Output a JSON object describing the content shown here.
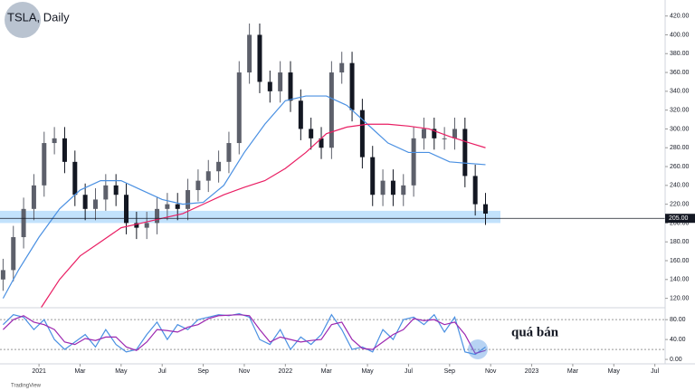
{
  "title": "TSLA, Daily",
  "footer": "TradingView",
  "chart_data": [
    {
      "type": "candlestick",
      "candles": {
        "x": [
          -1.75,
          -1.25,
          -0.75,
          -0.25,
          0.25,
          0.75,
          1.25,
          1.75,
          2.25,
          2.75,
          3.25,
          3.75,
          4.25,
          4.75,
          5.25,
          5.75,
          6.25,
          6.75,
          7.25,
          7.75,
          8.25,
          8.75,
          9.25,
          9.75,
          10.25,
          10.75,
          11.25,
          11.75,
          12.25,
          12.75,
          13.25,
          13.75,
          14.25,
          14.75,
          15.25,
          15.75,
          16.25,
          16.75,
          17.25,
          17.75,
          18.25,
          18.75,
          19.25,
          19.75,
          20.25,
          20.75,
          21.25,
          21.75
        ],
        "open": [
          140,
          150,
          185,
          215,
          240,
          285,
          290,
          265,
          230,
          215,
          225,
          240,
          230,
          200,
          195,
          200,
          215,
          220,
          215,
          235,
          245,
          255,
          265,
          285,
          360,
          400,
          350,
          340,
          360,
          330,
          300,
          290,
          280,
          360,
          370,
          320,
          270,
          230,
          245,
          230,
          240,
          290,
          300,
          290,
          290,
          300,
          250,
          220
        ],
        "high": [
          162,
          197,
          227,
          252,
          297,
          302,
          302,
          277,
          242,
          237,
          252,
          252,
          242,
          212,
          212,
          227,
          232,
          232,
          247,
          257,
          267,
          277,
          297,
          372,
          412,
          412,
          362,
          372,
          372,
          342,
          312,
          302,
          372,
          382,
          382,
          332,
          282,
          257,
          257,
          252,
          302,
          312,
          312,
          302,
          312,
          312,
          262,
          232
        ],
        "low": [
          128,
          138,
          173,
          203,
          228,
          273,
          253,
          218,
          203,
          203,
          213,
          218,
          188,
          183,
          183,
          188,
          203,
          203,
          203,
          223,
          233,
          243,
          253,
          273,
          348,
          338,
          328,
          328,
          318,
          288,
          278,
          268,
          268,
          348,
          308,
          258,
          218,
          218,
          218,
          218,
          228,
          278,
          278,
          278,
          278,
          238,
          208,
          198
        ],
        "close": [
          150,
          185,
          215,
          240,
          285,
          290,
          265,
          230,
          215,
          225,
          240,
          230,
          200,
          195,
          200,
          215,
          220,
          215,
          235,
          245,
          255,
          265,
          285,
          360,
          400,
          350,
          340,
          360,
          330,
          300,
          290,
          280,
          360,
          370,
          320,
          270,
          230,
          245,
          230,
          240,
          290,
          300,
          290,
          290,
          300,
          250,
          220,
          210
        ],
        "up_color": "#5d606b",
        "down_color": "#131722"
      },
      "lines": [
        {
          "color": "#4a90e2",
          "x": [
            -1.75,
            -1,
            0,
            1,
            2,
            3,
            4,
            5,
            6,
            7,
            8,
            9,
            10,
            11,
            12,
            13,
            14,
            15,
            16,
            17,
            18,
            19,
            20,
            21.75
          ],
          "values": [
            120,
            150,
            185,
            215,
            235,
            245,
            245,
            235,
            225,
            220,
            222,
            240,
            275,
            305,
            330,
            335,
            335,
            325,
            305,
            285,
            275,
            275,
            265,
            262
          ]
        },
        {
          "color": "#e91e63",
          "x": [
            0.1,
            1,
            2,
            3,
            4,
            5,
            6,
            7,
            8,
            9,
            10,
            11,
            12,
            13,
            14,
            15,
            16,
            17,
            18,
            19,
            20,
            21,
            21.75
          ],
          "values": [
            110,
            140,
            165,
            180,
            195,
            200,
            205,
            210,
            220,
            230,
            238,
            245,
            258,
            275,
            295,
            302,
            305,
            305,
            303,
            300,
            292,
            285,
            280
          ]
        }
      ],
      "hline": {
        "value": 205,
        "label": "205.00"
      },
      "zone": [
        200,
        213
      ],
      "xlim": [
        -1.9,
        30.5
      ],
      "ylim": [
        110,
        437
      ],
      "yticks": [
        {
          "value": 120,
          "label": "120.00"
        },
        {
          "value": 140,
          "label": "140.00"
        },
        {
          "value": 160,
          "label": "160.00"
        },
        {
          "value": 180,
          "label": "180.00"
        },
        {
          "value": 200,
          "label": "200.00"
        },
        {
          "value": 220,
          "label": "220.00"
        },
        {
          "value": 240,
          "label": "240.00"
        },
        {
          "value": 260,
          "label": "260.00"
        },
        {
          "value": 280,
          "label": "280.00"
        },
        {
          "value": 300,
          "label": "300.00"
        },
        {
          "value": 320,
          "label": "320.00"
        },
        {
          "value": 340,
          "label": "340.00"
        },
        {
          "value": 360,
          "label": "360.00"
        },
        {
          "value": 380,
          "label": "380.00"
        },
        {
          "value": 400,
          "label": "400.00"
        },
        {
          "value": 420,
          "label": "420.00"
        }
      ]
    },
    {
      "type": "line",
      "series": [
        {
          "color": "#4a90e2",
          "values": [
            70,
            90,
            85,
            60,
            80,
            40,
            20,
            35,
            50,
            25,
            60,
            30,
            15,
            20,
            50,
            75,
            40,
            70,
            60,
            80,
            85,
            90,
            88,
            92,
            85,
            40,
            30,
            60,
            20,
            45,
            30,
            50,
            90,
            60,
            20,
            25,
            15,
            60,
            40,
            80,
            85,
            70,
            90,
            55,
            85,
            15,
            10,
            25
          ]
        },
        {
          "color": "#9c27b0",
          "values": [
            60,
            80,
            88,
            75,
            70,
            60,
            35,
            30,
            42,
            38,
            45,
            45,
            25,
            18,
            35,
            60,
            58,
            55,
            65,
            70,
            82,
            88,
            89,
            90,
            88,
            60,
            35,
            45,
            40,
            35,
            38,
            40,
            70,
            75,
            40,
            22,
            20,
            35,
            50,
            60,
            82,
            78,
            80,
            70,
            75,
            50,
            12,
            18
          ]
        }
      ],
      "bands": [
        20,
        80
      ],
      "annotation": "quá bán",
      "xlim": [
        -1.9,
        30.5
      ],
      "ylim": [
        -9,
        104
      ],
      "yticks": [
        {
          "value": 0,
          "label": "0.00"
        },
        {
          "value": 40,
          "label": "40.00"
        },
        {
          "value": 80,
          "label": "80.00"
        }
      ],
      "xticks": [
        {
          "value": 0,
          "label": "2021"
        },
        {
          "value": 2,
          "label": "Mar"
        },
        {
          "value": 4,
          "label": "May"
        },
        {
          "value": 6,
          "label": "Jul"
        },
        {
          "value": 8,
          "label": "Sep"
        },
        {
          "value": 10,
          "label": "Nov"
        },
        {
          "value": 12,
          "label": "2022"
        },
        {
          "value": 14,
          "label": "Mar"
        },
        {
          "value": 16,
          "label": "May"
        },
        {
          "value": 18,
          "label": "Jul"
        },
        {
          "value": 20,
          "label": "Sep"
        },
        {
          "value": 22,
          "label": "Nov"
        },
        {
          "value": 24,
          "label": "2023"
        },
        {
          "value": 26,
          "label": "Mar"
        },
        {
          "value": 28,
          "label": "May"
        },
        {
          "value": 30,
          "label": "Jul"
        }
      ]
    }
  ]
}
